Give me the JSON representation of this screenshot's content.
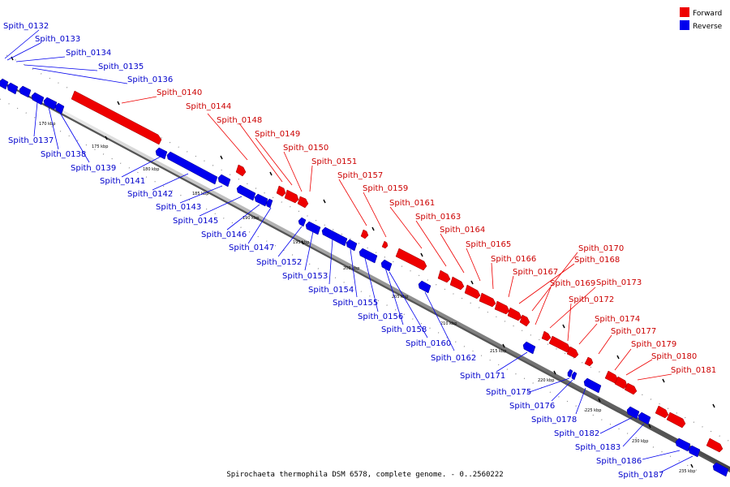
{
  "caption": "Spirochaeta thermophila DSM 6578, complete genome. - 0..2560222",
  "legend": [
    {
      "label": "Forward",
      "color": "#ee0000"
    },
    {
      "label": "Reverse",
      "color": "#0000ee"
    }
  ],
  "ticks": [
    "170 kbp",
    "175 kbp",
    "180 kbp",
    "185 kbp",
    "190 kbp",
    "195 kbp",
    "200 kbp",
    "205 kbp",
    "210 kbp",
    "215 kbp",
    "220 kbp",
    "225 kbp",
    "230 kbp",
    "235 kbp"
  ],
  "genes": [
    {
      "id": "Spith_0132",
      "strand": "reverse"
    },
    {
      "id": "Spith_0133",
      "strand": "reverse"
    },
    {
      "id": "Spith_0134",
      "strand": "reverse"
    },
    {
      "id": "Spith_0135",
      "strand": "reverse"
    },
    {
      "id": "Spith_0136",
      "strand": "reverse"
    },
    {
      "id": "Spith_0137",
      "strand": "reverse"
    },
    {
      "id": "Spith_0138",
      "strand": "reverse"
    },
    {
      "id": "Spith_0139",
      "strand": "reverse"
    },
    {
      "id": "Spith_0140",
      "strand": "forward"
    },
    {
      "id": "Spith_0141",
      "strand": "reverse"
    },
    {
      "id": "Spith_0142",
      "strand": "reverse"
    },
    {
      "id": "Spith_0143",
      "strand": "reverse"
    },
    {
      "id": "Spith_0144",
      "strand": "forward"
    },
    {
      "id": "Spith_0145",
      "strand": "reverse"
    },
    {
      "id": "Spith_0146",
      "strand": "reverse"
    },
    {
      "id": "Spith_0147",
      "strand": "reverse"
    },
    {
      "id": "Spith_0148",
      "strand": "forward"
    },
    {
      "id": "Spith_0149",
      "strand": "forward"
    },
    {
      "id": "Spith_0150",
      "strand": "forward"
    },
    {
      "id": "Spith_0151",
      "strand": "forward"
    },
    {
      "id": "Spith_0152",
      "strand": "reverse"
    },
    {
      "id": "Spith_0153",
      "strand": "reverse"
    },
    {
      "id": "Spith_0154",
      "strand": "reverse"
    },
    {
      "id": "Spith_0155",
      "strand": "reverse"
    },
    {
      "id": "Spith_0156",
      "strand": "reverse"
    },
    {
      "id": "Spith_0157",
      "strand": "forward"
    },
    {
      "id": "Spith_0158",
      "strand": "reverse"
    },
    {
      "id": "Spith_0159",
      "strand": "forward"
    },
    {
      "id": "Spith_0160",
      "strand": "reverse"
    },
    {
      "id": "Spith_0161",
      "strand": "forward"
    },
    {
      "id": "Spith_0162",
      "strand": "reverse"
    },
    {
      "id": "Spith_0163",
      "strand": "forward"
    },
    {
      "id": "Spith_0164",
      "strand": "forward"
    },
    {
      "id": "Spith_0165",
      "strand": "forward"
    },
    {
      "id": "Spith_0166",
      "strand": "forward"
    },
    {
      "id": "Spith_0167",
      "strand": "forward"
    },
    {
      "id": "Spith_0168",
      "strand": "forward"
    },
    {
      "id": "Spith_0169",
      "strand": "forward"
    },
    {
      "id": "Spith_0170",
      "strand": "forward"
    },
    {
      "id": "Spith_0171",
      "strand": "reverse"
    },
    {
      "id": "Spith_0172",
      "strand": "forward"
    },
    {
      "id": "Spith_0173",
      "strand": "forward"
    },
    {
      "id": "Spith_0174",
      "strand": "forward"
    },
    {
      "id": "Spith_0175",
      "strand": "reverse"
    },
    {
      "id": "Spith_0176",
      "strand": "reverse"
    },
    {
      "id": "Spith_0177",
      "strand": "forward"
    },
    {
      "id": "Spith_0178",
      "strand": "reverse"
    },
    {
      "id": "Spith_0179",
      "strand": "forward"
    },
    {
      "id": "Spith_0180",
      "strand": "forward"
    },
    {
      "id": "Spith_0181",
      "strand": "forward"
    },
    {
      "id": "Spith_0182",
      "strand": "reverse"
    },
    {
      "id": "Spith_0183",
      "strand": "reverse"
    },
    {
      "id": "Spith_0186",
      "strand": "reverse"
    },
    {
      "id": "Spith_0187",
      "strand": "reverse"
    }
  ]
}
